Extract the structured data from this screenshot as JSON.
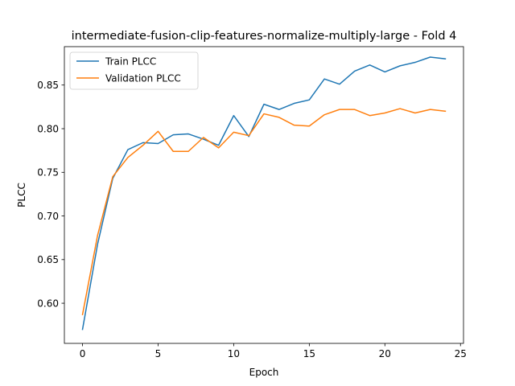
{
  "chart_data": {
    "type": "line",
    "title": "intermediate-fusion-clip-features-normalize-multiply-large - Fold 4",
    "xlabel": "Epoch",
    "ylabel": "PLCC",
    "xlim": [
      -1.2,
      25.2
    ],
    "ylim": [
      0.554,
      0.894
    ],
    "xticks": [
      0,
      5,
      10,
      15,
      20,
      25
    ],
    "yticks": [
      0.6,
      0.65,
      0.7,
      0.75,
      0.8,
      0.85
    ],
    "xtick_labels": [
      "0",
      "5",
      "10",
      "15",
      "20",
      "25"
    ],
    "ytick_labels": [
      "0.60",
      "0.65",
      "0.70",
      "0.75",
      "0.80",
      "0.85"
    ],
    "grid": false,
    "legend_position": "upper-left",
    "x": [
      0,
      1,
      2,
      3,
      4,
      5,
      6,
      7,
      8,
      9,
      10,
      11,
      12,
      13,
      14,
      15,
      16,
      17,
      18,
      19,
      20,
      21,
      22,
      23,
      24
    ],
    "series": [
      {
        "name": "Train PLCC",
        "color": "#1f77b4",
        "values": [
          0.57,
          0.668,
          0.743,
          0.776,
          0.784,
          0.783,
          0.793,
          0.794,
          0.788,
          0.781,
          0.815,
          0.791,
          0.828,
          0.822,
          0.829,
          0.833,
          0.857,
          0.851,
          0.866,
          0.873,
          0.865,
          0.872,
          0.876,
          0.882,
          0.88
        ]
      },
      {
        "name": "Validation PLCC",
        "color": "#ff7f0e",
        "values": [
          0.587,
          0.678,
          0.745,
          0.767,
          0.781,
          0.797,
          0.774,
          0.774,
          0.79,
          0.778,
          0.796,
          0.792,
          0.817,
          0.813,
          0.804,
          0.803,
          0.816,
          0.822,
          0.822,
          0.815,
          0.818,
          0.823,
          0.818,
          0.822,
          0.82
        ]
      }
    ]
  }
}
